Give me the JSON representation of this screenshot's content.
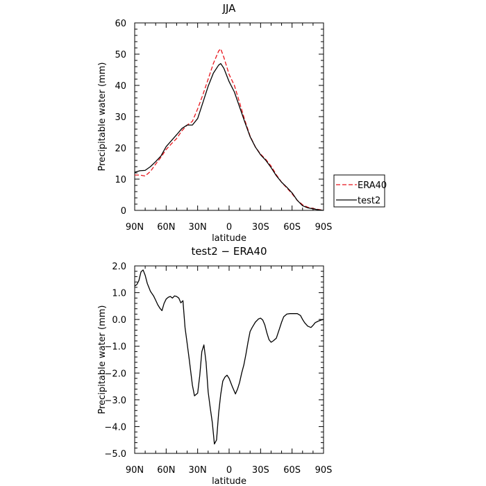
{
  "chart_data": [
    {
      "type": "line",
      "title": "JJA",
      "xlabel": "latitude",
      "ylabel": "Precipitable water (mm)",
      "xlim": [
        90,
        -90
      ],
      "ylim": [
        0,
        60
      ],
      "xticks": [
        90,
        60,
        30,
        0,
        -30,
        -60,
        -90
      ],
      "xtick_labels": [
        "90N",
        "60N",
        "30N",
        "0",
        "30S",
        "60S",
        "90S"
      ],
      "yticks": [
        0,
        10,
        20,
        30,
        40,
        50,
        60
      ],
      "ytick_labels": [
        "0",
        "10",
        "20",
        "30",
        "40",
        "50",
        "60"
      ],
      "legend": {
        "placement": "outside-right"
      },
      "series": [
        {
          "name": "ERA40",
          "color": "#e8131a",
          "dash": "dashed",
          "x": [
            90,
            85,
            80,
            75,
            70,
            65,
            60,
            55,
            50,
            45,
            40,
            35,
            30,
            25,
            20,
            15,
            10,
            8,
            5,
            0,
            -5,
            -10,
            -15,
            -20,
            -25,
            -30,
            -35,
            -40,
            -45,
            -50,
            -55,
            -60,
            -65,
            -70,
            -75,
            -80,
            -85,
            -90
          ],
          "y": [
            11.3,
            11.3,
            11.0,
            12.5,
            14.8,
            17.0,
            19.5,
            21.3,
            23.0,
            25.5,
            27.3,
            28.5,
            32.5,
            37.0,
            42.0,
            47.0,
            51.0,
            51.7,
            49.0,
            43.5,
            40.0,
            34.5,
            28.8,
            23.8,
            20.3,
            18.0,
            16.3,
            14.2,
            11.4,
            9.0,
            7.2,
            5.3,
            3.2,
            1.8,
            1.0,
            0.6,
            0.3,
            0.0
          ]
        },
        {
          "name": "test2",
          "color": "#000000",
          "dash": "solid",
          "x": [
            90,
            85,
            80,
            75,
            70,
            65,
            60,
            55,
            50,
            45,
            40,
            35,
            30,
            25,
            20,
            15,
            10,
            8,
            5,
            0,
            -5,
            -10,
            -15,
            -20,
            -25,
            -30,
            -35,
            -40,
            -45,
            -50,
            -55,
            -60,
            -65,
            -70,
            -75,
            -80,
            -85,
            -90
          ],
          "y": [
            12.2,
            12.7,
            12.8,
            14.0,
            15.6,
            17.4,
            20.4,
            22.3,
            24.2,
            26.2,
            27.3,
            27.3,
            29.4,
            34.5,
            39.7,
            43.9,
            46.5,
            47.0,
            45.5,
            41.2,
            37.9,
            33.1,
            28.2,
            23.6,
            20.3,
            17.8,
            16.0,
            13.7,
            11.1,
            9.0,
            7.4,
            5.6,
            3.2,
            1.5,
            0.8,
            0.5,
            0.2,
            0.0
          ]
        }
      ]
    },
    {
      "type": "line",
      "title": "test2 − ERA40",
      "xlabel": "latitude",
      "ylabel": "Precipitable water (mm)",
      "xlim": [
        90,
        -90
      ],
      "ylim": [
        -5,
        2
      ],
      "xticks": [
        90,
        60,
        30,
        0,
        -30,
        -60,
        -90
      ],
      "xtick_labels": [
        "90N",
        "60N",
        "30N",
        "0",
        "30S",
        "60S",
        "90S"
      ],
      "yticks": [
        2,
        1,
        0,
        -1,
        -2,
        -3,
        -4,
        -5
      ],
      "ytick_labels": [
        "2.0",
        "1.0",
        "0.0",
        "−1.0",
        "−2.0",
        "−3.0",
        "−4.0",
        "−5.0"
      ],
      "series": [
        {
          "color": "#000000",
          "dash": "solid",
          "x": [
            90,
            88,
            86,
            84,
            82,
            80,
            78,
            75,
            72,
            70,
            68,
            66,
            64,
            62,
            60,
            58,
            56,
            54,
            52,
            50,
            48,
            46,
            44,
            42,
            40,
            38,
            35,
            33,
            30,
            28,
            26,
            24,
            22,
            20,
            18,
            16,
            14,
            12,
            10,
            8,
            6,
            4,
            2,
            0,
            -3,
            -6,
            -8,
            -10,
            -12,
            -14,
            -16,
            -18,
            -20,
            -22,
            -25,
            -28,
            -30,
            -32,
            -34,
            -36,
            -38,
            -40,
            -42,
            -45,
            -48,
            -50,
            -52,
            -55,
            -58,
            -60,
            -62,
            -65,
            -68,
            -70,
            -72,
            -75,
            -78,
            -80,
            -82,
            -85,
            -88,
            -90
          ],
          "y": [
            1.25,
            1.3,
            1.45,
            1.78,
            1.85,
            1.65,
            1.35,
            1.05,
            0.88,
            0.72,
            0.55,
            0.42,
            0.33,
            0.6,
            0.76,
            0.83,
            0.86,
            0.8,
            0.88,
            0.86,
            0.8,
            0.62,
            0.7,
            -0.3,
            -0.9,
            -1.5,
            -2.45,
            -2.85,
            -2.75,
            -2.1,
            -1.2,
            -0.95,
            -1.6,
            -2.7,
            -3.3,
            -3.85,
            -4.65,
            -4.5,
            -3.5,
            -2.8,
            -2.3,
            -2.15,
            -2.08,
            -2.2,
            -2.5,
            -2.78,
            -2.6,
            -2.35,
            -2.0,
            -1.7,
            -1.3,
            -0.85,
            -0.45,
            -0.3,
            -0.1,
            0.02,
            0.05,
            -0.02,
            -0.2,
            -0.5,
            -0.75,
            -0.85,
            -0.8,
            -0.7,
            -0.35,
            -0.1,
            0.1,
            0.2,
            0.22,
            0.22,
            0.22,
            0.22,
            0.15,
            0.0,
            -0.12,
            -0.25,
            -0.3,
            -0.22,
            -0.12,
            -0.06,
            -0.02,
            0.0
          ]
        }
      ]
    }
  ],
  "colors": {
    "frame": "#000000",
    "era40": "#e8131a",
    "test2": "#000000"
  }
}
